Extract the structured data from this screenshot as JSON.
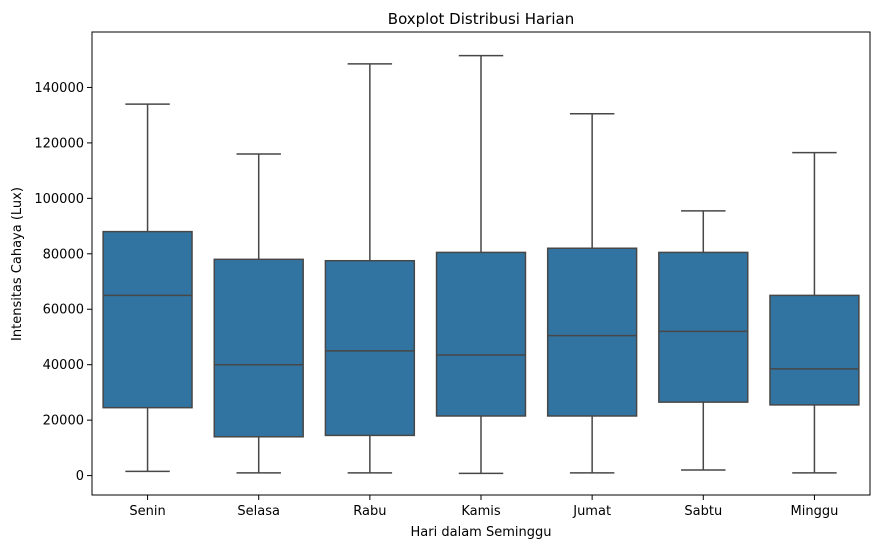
{
  "chart_data": {
    "type": "box",
    "title": "Boxplot Distribusi Harian",
    "xlabel": "Hari dalam Seminggu",
    "ylabel": "Intensitas Cahaya (Lux)",
    "ylim": [
      -7000,
      160000
    ],
    "yticks": [
      0,
      20000,
      40000,
      60000,
      80000,
      100000,
      120000,
      140000
    ],
    "categories": [
      "Senin",
      "Selasa",
      "Rabu",
      "Kamis",
      "Jumat",
      "Sabtu",
      "Minggu"
    ],
    "box_color": "#3274a1",
    "line_color": "#474747",
    "boxes": [
      {
        "category": "Senin",
        "whisker_low": 1500,
        "q1": 24500,
        "median": 65000,
        "q3": 88000,
        "whisker_high": 134000
      },
      {
        "category": "Selasa",
        "whisker_low": 1000,
        "q1": 14000,
        "median": 40000,
        "q3": 78000,
        "whisker_high": 116000
      },
      {
        "category": "Rabu",
        "whisker_low": 1000,
        "q1": 14500,
        "median": 45000,
        "q3": 77500,
        "whisker_high": 148500
      },
      {
        "category": "Kamis",
        "whisker_low": 800,
        "q1": 21500,
        "median": 43500,
        "q3": 80500,
        "whisker_high": 151500
      },
      {
        "category": "Jumat",
        "whisker_low": 1000,
        "q1": 21500,
        "median": 50500,
        "q3": 82000,
        "whisker_high": 130500
      },
      {
        "category": "Sabtu",
        "whisker_low": 2000,
        "q1": 26500,
        "median": 52000,
        "q3": 80500,
        "whisker_high": 95500
      },
      {
        "category": "Minggu",
        "whisker_low": 1000,
        "q1": 25500,
        "median": 38500,
        "q3": 65000,
        "whisker_high": 116500
      }
    ]
  }
}
